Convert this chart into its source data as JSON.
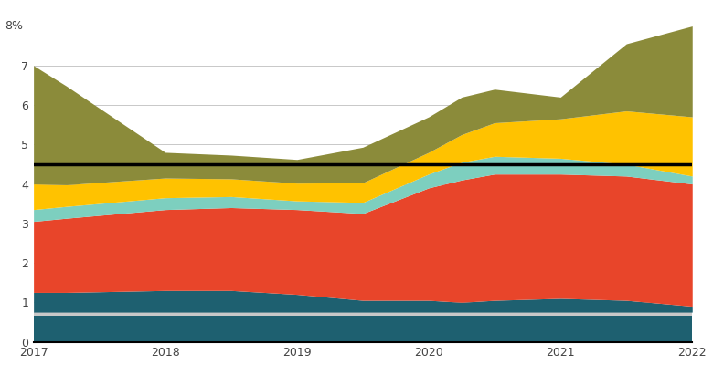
{
  "years": [
    2017,
    2017.25,
    2018,
    2018.5,
    2019,
    2019.5,
    2020,
    2020.25,
    2020.5,
    2021,
    2021.5,
    2022
  ],
  "layers": {
    "dark_teal_bot": [
      0.65,
      0.65,
      0.65,
      0.65,
      0.65,
      0.65,
      0.65,
      0.65,
      0.65,
      0.65,
      0.65,
      0.65
    ],
    "light_gray": [
      0.1,
      0.1,
      0.1,
      0.1,
      0.1,
      0.1,
      0.1,
      0.1,
      0.1,
      0.1,
      0.1,
      0.1
    ],
    "dark_teal_top": [
      0.5,
      0.5,
      0.55,
      0.55,
      0.45,
      0.3,
      0.3,
      0.25,
      0.3,
      0.35,
      0.3,
      0.15
    ],
    "red": [
      1.8,
      1.88,
      2.05,
      2.1,
      2.15,
      2.2,
      2.85,
      3.1,
      3.2,
      3.15,
      3.15,
      3.1
    ],
    "cyan": [
      0.3,
      0.3,
      0.3,
      0.28,
      0.22,
      0.28,
      0.35,
      0.45,
      0.45,
      0.4,
      0.3,
      0.2
    ],
    "yellow": [
      0.65,
      0.55,
      0.5,
      0.45,
      0.45,
      0.5,
      0.55,
      0.7,
      0.85,
      1.0,
      1.35,
      1.5
    ],
    "olive": [
      3.0,
      2.5,
      0.65,
      0.6,
      0.6,
      0.9,
      0.9,
      0.95,
      0.85,
      0.55,
      1.7,
      2.3
    ]
  },
  "colors": {
    "dark_teal_bot": "#1e6070",
    "light_gray": "#c8c8c8",
    "dark_teal_top": "#1e6070",
    "red": "#e8452a",
    "cyan": "#7dcfbf",
    "yellow": "#ffc200",
    "olive": "#8b8b3a"
  },
  "reference_line_y": 4.5,
  "reference_line_color": "#000000",
  "ylim": [
    0,
    8.5
  ],
  "yticks": [
    0,
    1,
    2,
    3,
    4,
    5,
    6,
    7
  ],
  "ytick_labels": [
    "0",
    "1",
    "2",
    "3",
    "4",
    "5",
    "6",
    "7"
  ],
  "ytop_label": "8%",
  "xticks": [
    2017,
    2018,
    2019,
    2020,
    2021,
    2022
  ],
  "grid_color": "#c8c8c8",
  "background_color": "#ffffff"
}
